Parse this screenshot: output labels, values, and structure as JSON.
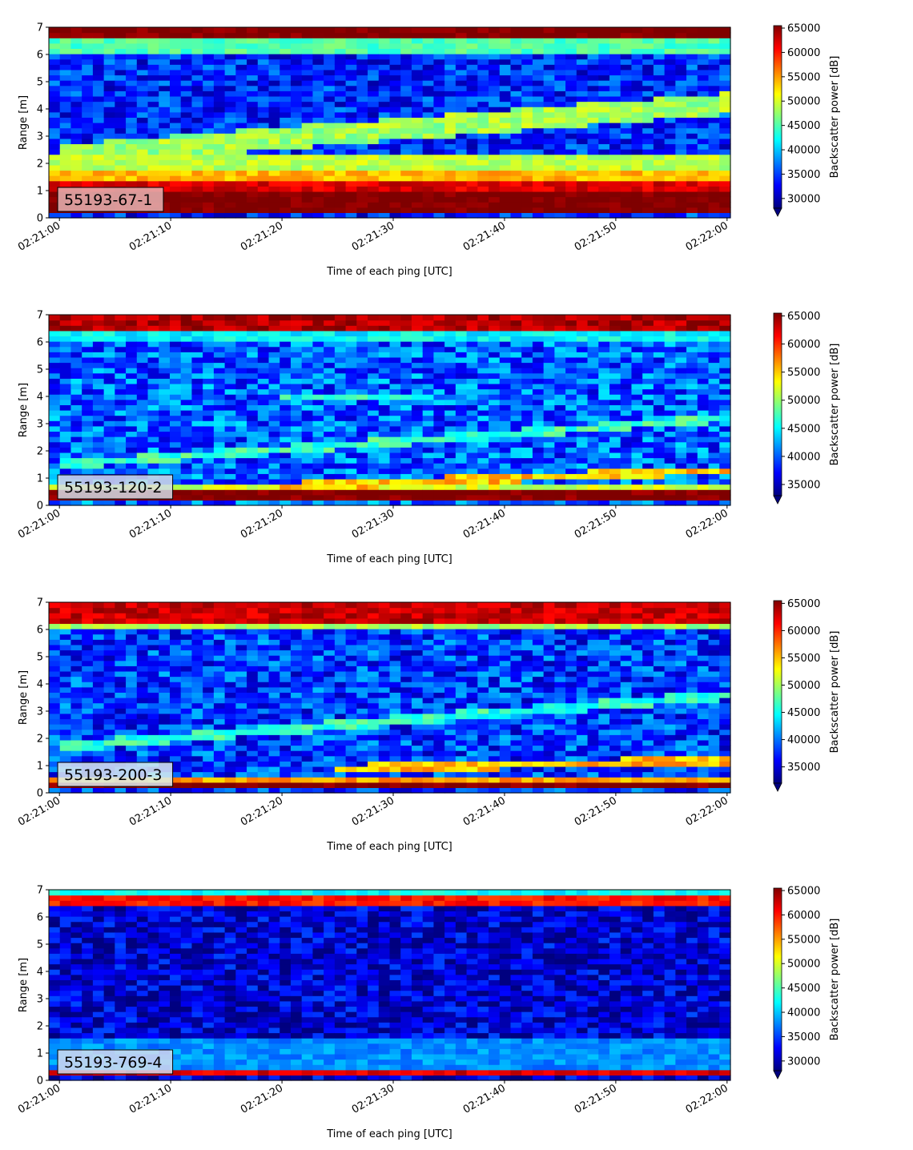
{
  "colormap": [
    "#00007f",
    "#0000ff",
    "#007fff",
    "#00ffff",
    "#7fff7f",
    "#ffff00",
    "#ff7f00",
    "#ff0000",
    "#7f0000"
  ],
  "chart_data": [
    {
      "type": "heatmap",
      "label": "55193-67-1",
      "label_box_color": "#e8b4b4",
      "xlabel": "Time of each ping [UTC]",
      "ylabel": "Range [m]",
      "xlim": [
        "02:21:00",
        "02:22:00"
      ],
      "xticks": [
        "02:21:00",
        "02:21:10",
        "02:21:20",
        "02:21:30",
        "02:21:40",
        "02:21:50",
        "02:22:00"
      ],
      "ylim": [
        0,
        7
      ],
      "yticks": [
        "0",
        "1",
        "2",
        "3",
        "4",
        "5",
        "6",
        "7"
      ],
      "colorbar": {
        "label": "Backscatter power [dB]",
        "vmin": 28000,
        "vmax": 65500,
        "ticks": [
          "30000",
          "35000",
          "40000",
          "45000",
          "50000",
          "55000",
          "60000",
          "65000"
        ],
        "extend": "min"
      },
      "background_level": 34000,
      "features": [
        {
          "kind": "band",
          "range": [
            0.2,
            0.9
          ],
          "level": 66000
        },
        {
          "kind": "band",
          "range": [
            0.9,
            1.3
          ],
          "level": 62000
        },
        {
          "kind": "band",
          "range": [
            1.3,
            1.8
          ],
          "level": 54000
        },
        {
          "kind": "band",
          "range": [
            1.8,
            2.3
          ],
          "level": 49000
        },
        {
          "kind": "band",
          "range": [
            6.1,
            6.6
          ],
          "level": 45000
        },
        {
          "kind": "band",
          "range": [
            6.6,
            7.0
          ],
          "level": 66000
        },
        {
          "kind": "track",
          "t_sec": [
            0,
            60
          ],
          "range": [
            2.3,
            4.2
          ],
          "level": 48000,
          "width": 0.8
        }
      ]
    },
    {
      "type": "heatmap",
      "label": "55193-120-2",
      "label_box_color": "#d4dce8",
      "xlabel": "Time of each ping [UTC]",
      "ylabel": "Range [m]",
      "xlim": [
        "02:21:00",
        "02:22:00"
      ],
      "xticks": [
        "02:21:00",
        "02:21:10",
        "02:21:20",
        "02:21:30",
        "02:21:40",
        "02:21:50",
        "02:22:00"
      ],
      "ylim": [
        0,
        7
      ],
      "yticks": [
        "0",
        "1",
        "2",
        "3",
        "4",
        "5",
        "6",
        "7"
      ],
      "colorbar": {
        "label": "Backscatter power [dB]",
        "vmin": 33000,
        "vmax": 65500,
        "ticks": [
          "35000",
          "40000",
          "45000",
          "50000",
          "55000",
          "60000",
          "65000"
        ],
        "extend": "min"
      },
      "background_level": 40000,
      "features": [
        {
          "kind": "band",
          "range": [
            0.1,
            0.5
          ],
          "level": 66000
        },
        {
          "kind": "band",
          "range": [
            0.5,
            0.7
          ],
          "level": 52000
        },
        {
          "kind": "band",
          "range": [
            6.0,
            6.5
          ],
          "level": 45000
        },
        {
          "kind": "band",
          "range": [
            6.5,
            7.0
          ],
          "level": 64000
        },
        {
          "kind": "track",
          "t_sec": [
            0,
            60
          ],
          "range": [
            1.5,
            3.2
          ],
          "level": 47000,
          "width": 0.3
        },
        {
          "kind": "track",
          "t_sec": [
            20,
            60
          ],
          "range": [
            0.7,
            1.3
          ],
          "level": 55000,
          "width": 0.3
        },
        {
          "kind": "track",
          "t_sec": [
            20,
            34
          ],
          "range": [
            3.9,
            3.9
          ],
          "level": 46000,
          "width": 0.2
        }
      ]
    },
    {
      "type": "heatmap",
      "label": "55193-200-3",
      "label_box_color": "#dcecf0",
      "xlabel": "Time of each ping [UTC]",
      "ylabel": "Range [m]",
      "xlim": [
        "02:21:00",
        "02:22:00"
      ],
      "xticks": [
        "02:21:00",
        "02:21:10",
        "02:21:20",
        "02:21:30",
        "02:21:40",
        "02:21:50",
        "02:22:00"
      ],
      "ylim": [
        0,
        7
      ],
      "yticks": [
        "0",
        "1",
        "2",
        "3",
        "4",
        "5",
        "6",
        "7"
      ],
      "colorbar": {
        "label": "Backscatter power [dB]",
        "vmin": 32000,
        "vmax": 65500,
        "ticks": [
          "35000",
          "40000",
          "45000",
          "50000",
          "55000",
          "60000",
          "65000"
        ],
        "extend": "min"
      },
      "background_level": 38000,
      "features": [
        {
          "kind": "band",
          "range": [
            0.2,
            0.4
          ],
          "level": 66000
        },
        {
          "kind": "band",
          "range": [
            0.4,
            0.6
          ],
          "level": 56000
        },
        {
          "kind": "band",
          "range": [
            6.0,
            6.3
          ],
          "level": 50000
        },
        {
          "kind": "band",
          "range": [
            6.3,
            7.0
          ],
          "level": 63000
        },
        {
          "kind": "track",
          "t_sec": [
            0,
            60
          ],
          "range": [
            1.7,
            3.6
          ],
          "level": 46000,
          "width": 0.35
        },
        {
          "kind": "track",
          "t_sec": [
            25,
            60
          ],
          "range": [
            0.9,
            1.2
          ],
          "level": 55000,
          "width": 0.3
        }
      ]
    },
    {
      "type": "heatmap",
      "label": "55193-769-4",
      "label_box_color": "#d4dcf0",
      "xlabel": "Time of each ping [UTC]",
      "ylabel": "Range [m]",
      "xlim": [
        "02:21:00",
        "02:22:00"
      ],
      "xticks": [
        "02:21:00",
        "02:21:10",
        "02:21:20",
        "02:21:30",
        "02:21:40",
        "02:21:50",
        "02:22:00"
      ],
      "ylim": [
        0,
        7
      ],
      "yticks": [
        "0",
        "1",
        "2",
        "3",
        "4",
        "5",
        "6",
        "7"
      ],
      "colorbar": {
        "label": "Backscatter power [dB]",
        "vmin": 28000,
        "vmax": 65500,
        "ticks": [
          "30000",
          "35000",
          "40000",
          "45000",
          "50000",
          "55000",
          "60000",
          "65000"
        ],
        "extend": "min"
      },
      "background_level": 31000,
      "features": [
        {
          "kind": "band",
          "range": [
            0.15,
            0.35
          ],
          "level": 62000
        },
        {
          "kind": "band",
          "range": [
            0.35,
            1.5
          ],
          "level": 38000
        },
        {
          "kind": "band",
          "range": [
            6.4,
            6.8
          ],
          "level": 60000
        },
        {
          "kind": "band",
          "range": [
            6.8,
            7.0
          ],
          "level": 42000
        }
      ]
    }
  ]
}
